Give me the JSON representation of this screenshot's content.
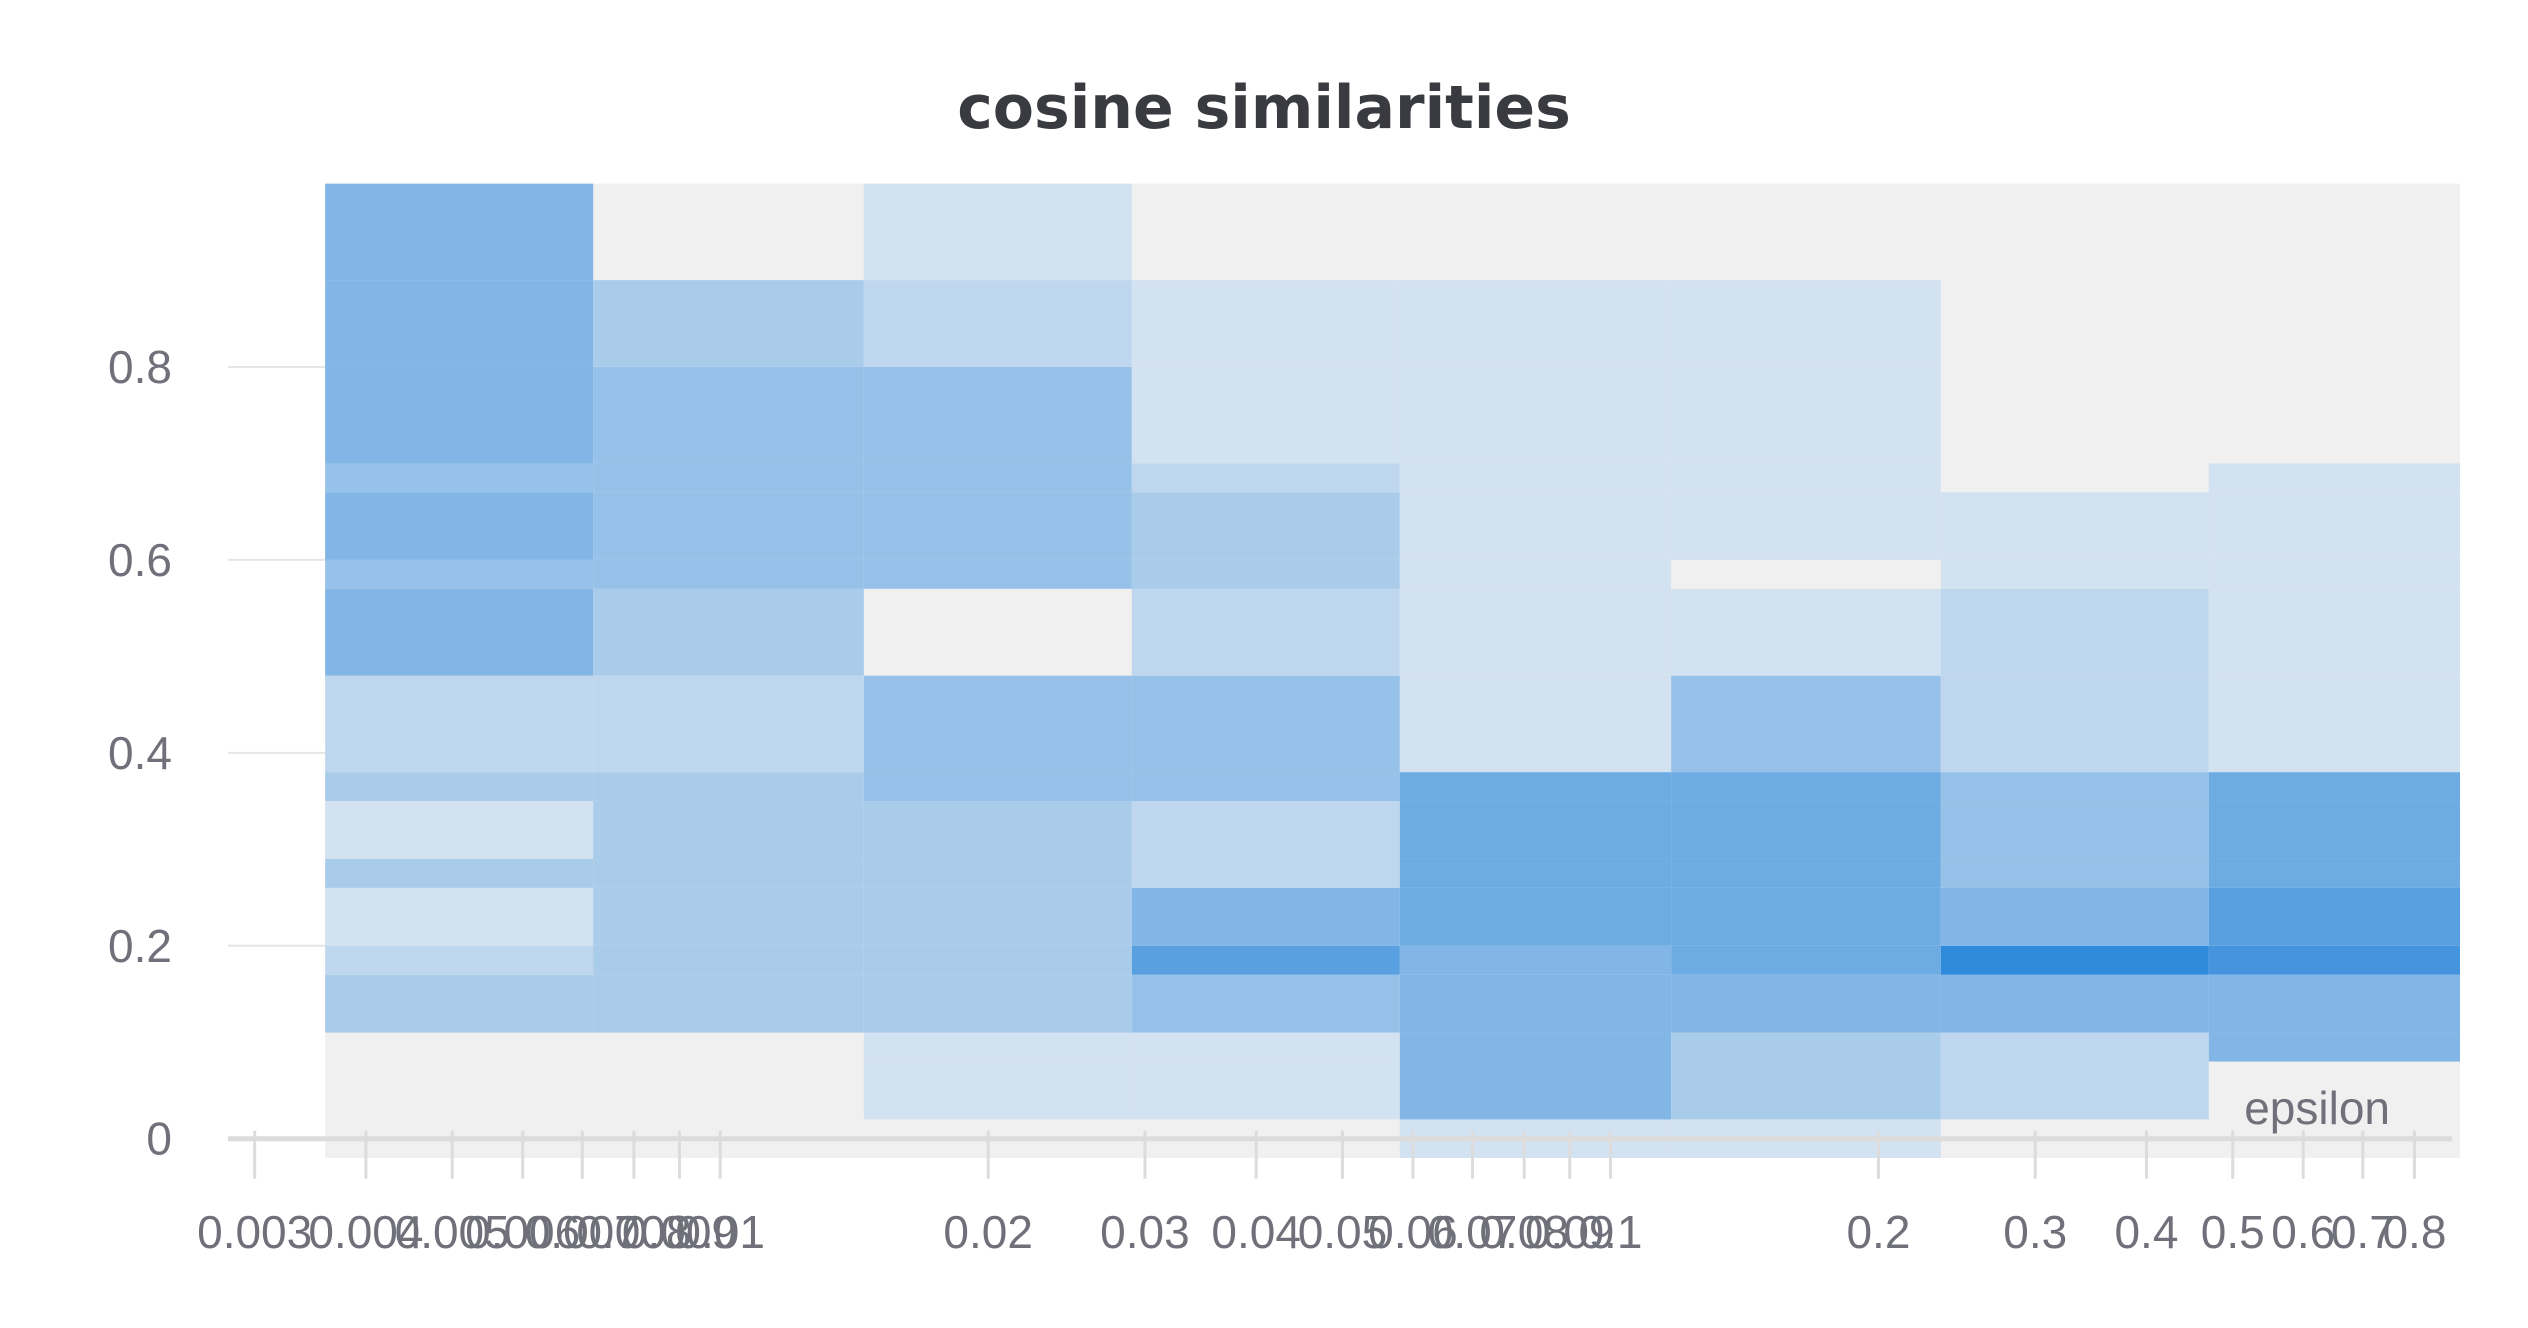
{
  "chart_data": {
    "type": "heatmap",
    "title": "cosine similarities",
    "xlabel": "epsilon",
    "ylabel": "",
    "x_scale": "log",
    "xlim": [
      0.0028,
      0.9
    ],
    "ylim": [
      -0.02,
      1.0
    ],
    "grid": true,
    "x_ticks": [
      {
        "value": 0.003,
        "label": "0.003"
      },
      {
        "value": 0.004,
        "label": "0.004"
      },
      {
        "value": 0.005,
        "label": "0.005"
      },
      {
        "value": 0.006,
        "label": "0.006"
      },
      {
        "value": 0.007,
        "label": "0.007"
      },
      {
        "value": 0.008,
        "label": "0.008"
      },
      {
        "value": 0.009,
        "label": "0.009"
      },
      {
        "value": 0.01,
        "label": "0.01"
      },
      {
        "value": 0.02,
        "label": "0.02"
      },
      {
        "value": 0.03,
        "label": "0.03"
      },
      {
        "value": 0.04,
        "label": "0.04"
      },
      {
        "value": 0.05,
        "label": "0.05"
      },
      {
        "value": 0.06,
        "label": "0.06"
      },
      {
        "value": 0.07,
        "label": "0.07"
      },
      {
        "value": 0.08,
        "label": "0.08"
      },
      {
        "value": 0.09,
        "label": "0.09"
      },
      {
        "value": 0.1,
        "label": "0.1"
      },
      {
        "value": 0.2,
        "label": "0.2"
      },
      {
        "value": 0.3,
        "label": "0.3"
      },
      {
        "value": 0.4,
        "label": "0.4"
      },
      {
        "value": 0.5,
        "label": "0.5"
      },
      {
        "value": 0.6,
        "label": "0.6"
      },
      {
        "value": 0.7,
        "label": "0.7"
      },
      {
        "value": 0.8,
        "label": "0.8"
      }
    ],
    "y_ticks": [
      {
        "value": 0,
        "label": "0"
      },
      {
        "value": 0.2,
        "label": "0.2"
      },
      {
        "value": 0.4,
        "label": "0.4"
      },
      {
        "value": 0.6,
        "label": "0.6"
      },
      {
        "value": 0.8,
        "label": "0.8"
      }
    ],
    "x_bins": [
      [
        0.0036,
        0.0072
      ],
      [
        0.0072,
        0.0145
      ],
      [
        0.0145,
        0.029
      ],
      [
        0.029,
        0.058
      ],
      [
        0.058,
        0.117
      ],
      [
        0.117,
        0.235
      ],
      [
        0.235,
        0.47
      ],
      [
        0.47,
        0.9
      ]
    ],
    "y_bins": [
      -0.02,
      0.02,
      0.08,
      0.11,
      0.17,
      0.2,
      0.26,
      0.29,
      0.35,
      0.38,
      0.48,
      0.57,
      0.6,
      0.67,
      0.7,
      0.8,
      0.89,
      0.99
    ],
    "values": [
      [
        0,
        0,
        0,
        3,
        2,
        1,
        3,
        1,
        3,
        2,
        5,
        4,
        5,
        4,
        5,
        5,
        5
      ],
      [
        0,
        0,
        0,
        3,
        3,
        3,
        3,
        3,
        3,
        2,
        3,
        4,
        4,
        4,
        4,
        3,
        0
      ],
      [
        0,
        1,
        1,
        3,
        3,
        3,
        3,
        3,
        4,
        4,
        0,
        4,
        4,
        4,
        4,
        2,
        1
      ],
      [
        0,
        1,
        1,
        4,
        7,
        5,
        2,
        2,
        4,
        4,
        2,
        3,
        3,
        2,
        1,
        1,
        0
      ],
      [
        1,
        5,
        5,
        5,
        5,
        6,
        6,
        6,
        6,
        1,
        1,
        1,
        1,
        1,
        1,
        1,
        0
      ],
      [
        1,
        3,
        3,
        5,
        6,
        6,
        6,
        6,
        6,
        4,
        1,
        0,
        1,
        1,
        1,
        1,
        0
      ],
      [
        0,
        2,
        2,
        5,
        9,
        5,
        4,
        4,
        4,
        2,
        2,
        1,
        1,
        0,
        0,
        0,
        0
      ],
      [
        0,
        0,
        5,
        5,
        8,
        7,
        6,
        6,
        6,
        1,
        1,
        1,
        1,
        1,
        0,
        0,
        0
      ]
    ],
    "max_value": 9,
    "colors": {
      "background": "#f0f0f0",
      "low": "#e8edf3",
      "high": "#2f8adb",
      "axis": "#dcdcdc",
      "grid": "#e6e6e6",
      "text": "#6f7079",
      "title": "#3a3b40"
    }
  }
}
